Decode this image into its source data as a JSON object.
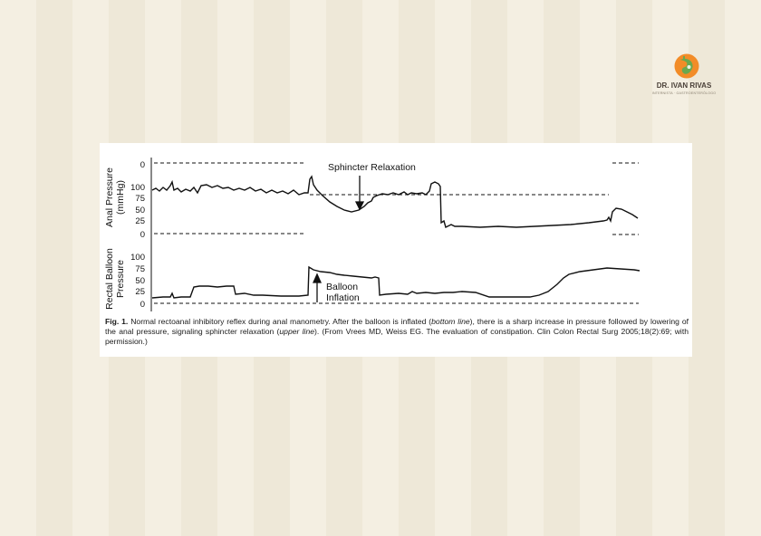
{
  "brand": {
    "name": "DR. IVAN RIVAS",
    "tagline": "INTERNISTA · GASTROENTERÓLOGO",
    "colors": {
      "orange": "#f28c28",
      "green": "#6aa84f",
      "text": "#4a4038"
    }
  },
  "figure": {
    "panels": [
      {
        "ylabel_line1": "Anal Pressure",
        "ylabel_line2": "(mmHg)",
        "ticks": [
          "0",
          "100",
          "75",
          "50",
          "25",
          "0"
        ]
      },
      {
        "ylabel_line1": "Rectal Balloon",
        "ylabel_line2": "Pressure",
        "ticks": [
          "100",
          "75",
          "50",
          "25",
          "0"
        ]
      }
    ],
    "annotations": {
      "sphincter": "Sphincter Relaxation",
      "balloon_line1": "Balloon",
      "balloon_line2": "Inflation"
    },
    "caption": {
      "label": "Fig. 1.",
      "part1": " Normal rectoanal inhibitory reflex during anal manometry. After the balloon is inflated (",
      "em1": "bottom line",
      "part2": "), there is a sharp increase in pressure followed by lowering of the anal pressure, signaling sphincter relaxation (",
      "em2": "upper line",
      "part3": "). (From Vrees MD, Weiss EG. The evaluation of constipation. Clin Colon Rectal Surg 2005;18(2):69; with permission.)"
    }
  }
}
